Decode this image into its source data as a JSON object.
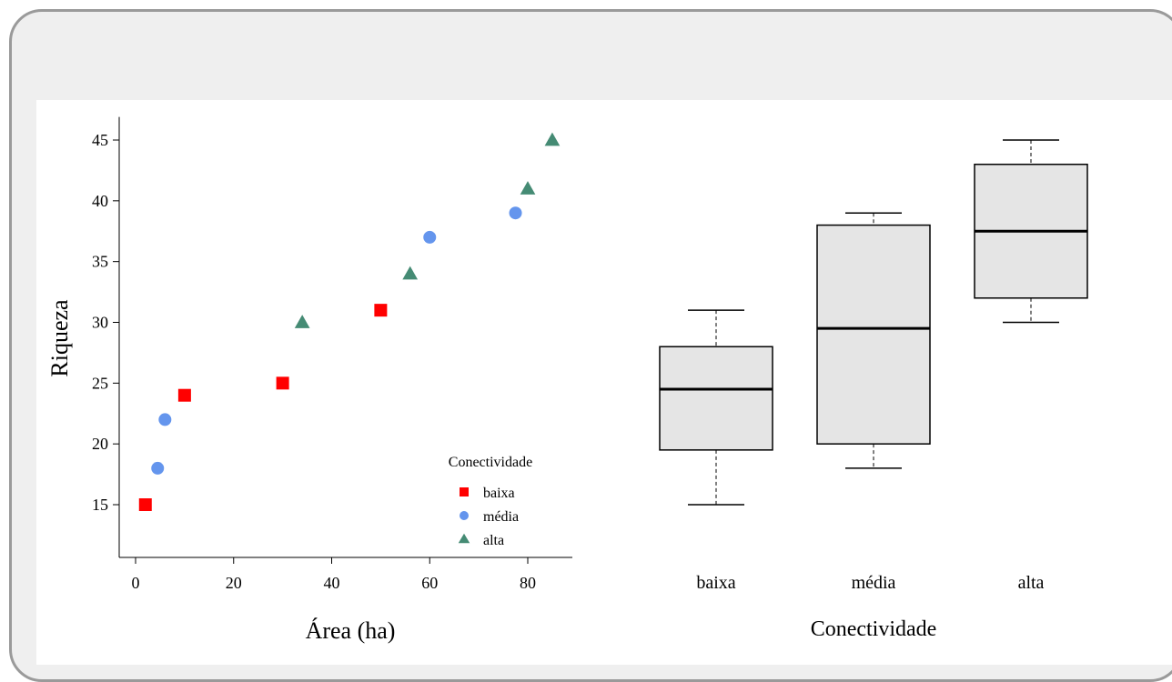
{
  "colors": {
    "frame_background": "#efefef",
    "frame_border": "#9a9a9a",
    "baixa": "#ff0000",
    "media": "#6495ed",
    "alta": "#458b74",
    "box_fill": "#e5e5e5"
  },
  "chart_data": [
    {
      "type": "scatter",
      "xlabel": "Área (ha)",
      "ylabel": "Riqueza",
      "xlim": [
        0,
        87
      ],
      "ylim": [
        11,
        46
      ],
      "x_ticks": [
        0,
        20,
        40,
        60,
        80
      ],
      "y_ticks": [
        15,
        20,
        25,
        30,
        35,
        40,
        45
      ],
      "legend": {
        "title": "Conectividade",
        "placement": "bottom-right",
        "entries": [
          {
            "label": "baixa",
            "symbol": "square",
            "color": "#ff0000"
          },
          {
            "label": "média",
            "symbol": "circle",
            "color": "#6495ed"
          },
          {
            "label": "alta",
            "symbol": "triangle",
            "color": "#458b74"
          }
        ]
      },
      "series": [
        {
          "name": "baixa",
          "symbol": "square",
          "color": "#ff0000",
          "points": [
            {
              "x": 2,
              "y": 15
            },
            {
              "x": 10,
              "y": 24
            },
            {
              "x": 30,
              "y": 25
            },
            {
              "x": 50,
              "y": 31
            }
          ]
        },
        {
          "name": "média",
          "symbol": "circle",
          "color": "#6495ed",
          "points": [
            {
              "x": 4.5,
              "y": 18
            },
            {
              "x": 6,
              "y": 22
            },
            {
              "x": 60,
              "y": 37
            },
            {
              "x": 77.5,
              "y": 39
            }
          ]
        },
        {
          "name": "alta",
          "symbol": "triangle",
          "color": "#458b74",
          "points": [
            {
              "x": 34,
              "y": 30
            },
            {
              "x": 56,
              "y": 34
            },
            {
              "x": 80,
              "y": 41
            },
            {
              "x": 85,
              "y": 45
            }
          ]
        }
      ]
    },
    {
      "type": "boxplot",
      "xlabel": "Conectividade",
      "ylabel": "",
      "ylim": [
        11,
        46
      ],
      "categories": [
        "baixa",
        "média",
        "alta"
      ],
      "boxes": [
        {
          "category": "baixa",
          "min": 15,
          "q1": 19.5,
          "median": 24.5,
          "q3": 28,
          "max": 31
        },
        {
          "category": "média",
          "min": 18,
          "q1": 20,
          "median": 29.5,
          "q3": 38,
          "max": 39
        },
        {
          "category": "alta",
          "min": 30,
          "q1": 32,
          "median": 37.5,
          "q3": 43,
          "max": 45
        }
      ]
    }
  ]
}
